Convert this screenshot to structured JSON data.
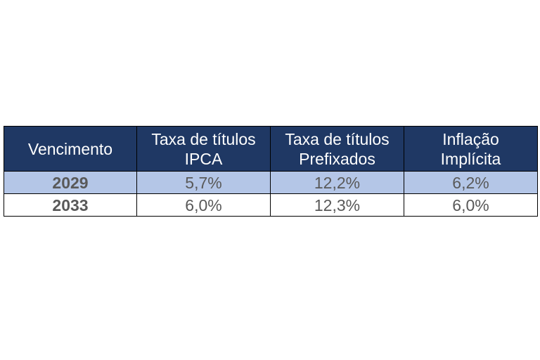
{
  "table": {
    "headers": [
      [
        "Vencimento"
      ],
      [
        "Taxa de títulos",
        "IPCA"
      ],
      [
        "Taxa de títulos",
        "Prefixados"
      ],
      [
        "Inflação",
        "Implícita"
      ]
    ],
    "rows": [
      {
        "year": "2029",
        "ipca": "5,7%",
        "prefixados": "12,2%",
        "inflacao": "6,2%"
      },
      {
        "year": "2033",
        "ipca": "6,0%",
        "prefixados": "12,3%",
        "inflacao": "6,0%"
      }
    ],
    "colors": {
      "header_bg": "#1f3864",
      "shaded_row_bg": "#b4c6e7",
      "cell_text": "#595959"
    }
  }
}
